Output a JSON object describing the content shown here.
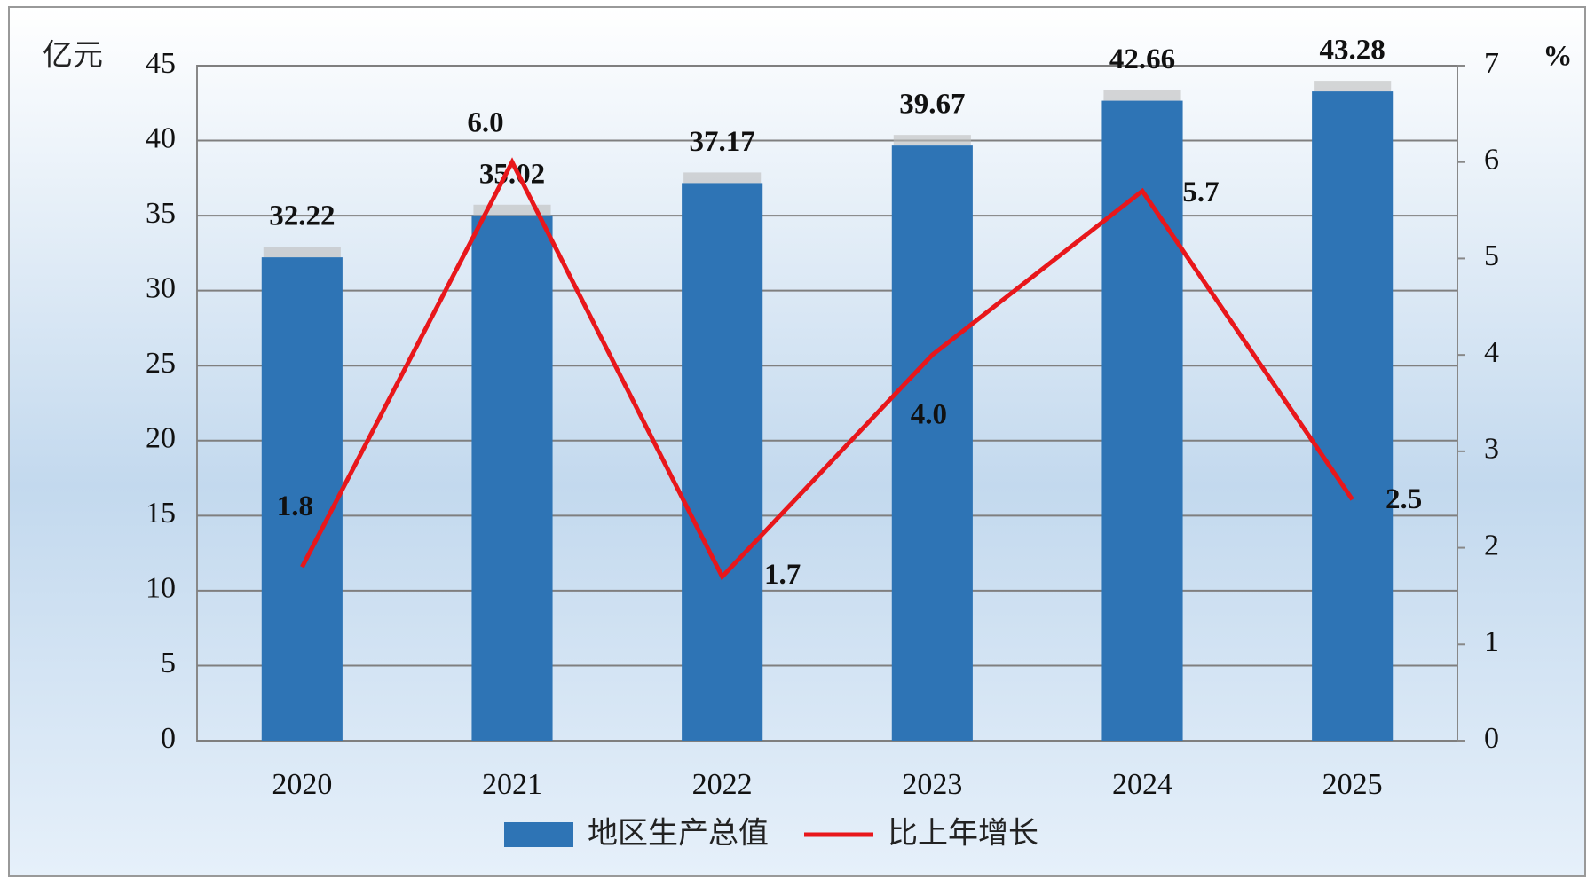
{
  "chart_data": {
    "type": "bar-line",
    "y_label": "亿元",
    "y2_label": "%",
    "categories": [
      "2020",
      "2021",
      "2022",
      "2023",
      "2024",
      "2025"
    ],
    "series": [
      {
        "name": "地区生产总值",
        "type": "bar",
        "color": "#2e74b5",
        "values": [
          32.22,
          35.02,
          37.17,
          39.67,
          42.66,
          43.28
        ]
      },
      {
        "name": "比上年增长",
        "type": "line",
        "axis": "y2",
        "color": "#e8171b",
        "values": [
          1.8,
          6,
          1.7,
          4,
          5.7,
          2.5
        ],
        "value_labels": [
          "1.8",
          "6.0",
          "1.7",
          "4.0",
          "5.7",
          "2.5"
        ]
      }
    ],
    "ylim": [
      0,
      45
    ],
    "yticks": [
      0,
      5,
      10,
      15,
      20,
      25,
      30,
      35,
      40,
      45
    ],
    "y2lim": [
      0,
      7
    ],
    "y2ticks": [
      0,
      1,
      2,
      3,
      4,
      5,
      6,
      7
    ],
    "grid": true,
    "legend": "bottom"
  }
}
